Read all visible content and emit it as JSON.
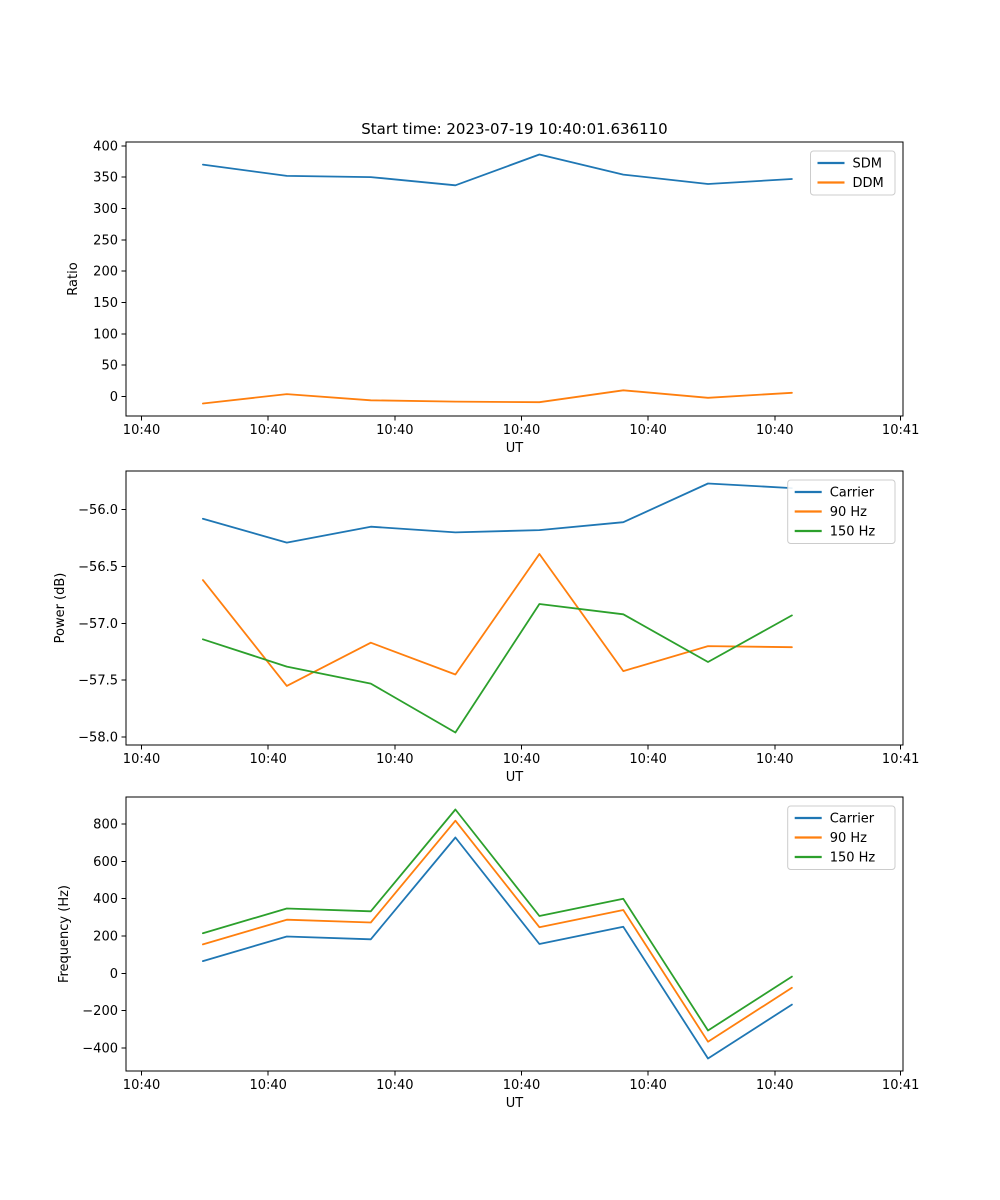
{
  "figure": {
    "background": "#ffffff",
    "title": "Start time: 2023-07-19 10:40:01.636110"
  },
  "chart_data": [
    {
      "id": "ratio",
      "type": "line",
      "title": "Start time: 2023-07-19 10:40:01.636110",
      "xlabel": "UT",
      "ylabel": "Ratio",
      "legend_location": "upper right",
      "grid": false,
      "ylim": [
        -31,
        406
      ],
      "yticks": [
        0,
        50,
        100,
        150,
        200,
        250,
        300,
        350,
        400
      ],
      "ytick_labels": [
        "0",
        "50",
        "100",
        "150",
        "200",
        "250",
        "300",
        "350",
        "400"
      ],
      "x_tick_labels": [
        "10:40",
        "10:40",
        "10:40",
        "10:40",
        "10:40",
        "10:40",
        "10:41"
      ],
      "x_tick_positions": [
        0.02,
        0.183,
        0.346,
        0.509,
        0.672,
        0.835,
        0.997
      ],
      "x_positions": [
        0.099,
        0.207,
        0.315,
        0.424,
        0.532,
        0.64,
        0.749,
        0.857
      ],
      "series": [
        {
          "name": "SDM",
          "color": "#1f77b4",
          "values": [
            370,
            352,
            350,
            337,
            386,
            354,
            339,
            347
          ]
        },
        {
          "name": "DDM",
          "color": "#ff7f0e",
          "values": [
            -11,
            4,
            -6,
            -8,
            -9,
            10,
            -2,
            6
          ]
        }
      ]
    },
    {
      "id": "power",
      "type": "line",
      "title": null,
      "xlabel": "UT",
      "ylabel": "Power (dB)",
      "legend_location": "upper right",
      "grid": false,
      "ylim": [
        -58.07,
        -55.66
      ],
      "yticks": [
        -58.0,
        -57.5,
        -57.0,
        -56.5,
        -56.0
      ],
      "ytick_labels": [
        "−58.0",
        "−57.5",
        "−57.0",
        "−56.5",
        "−56.0"
      ],
      "x_tick_labels": [
        "10:40",
        "10:40",
        "10:40",
        "10:40",
        "10:40",
        "10:40",
        "10:41"
      ],
      "x_tick_positions": [
        0.02,
        0.183,
        0.346,
        0.509,
        0.672,
        0.835,
        0.997
      ],
      "x_positions": [
        0.099,
        0.207,
        0.315,
        0.424,
        0.532,
        0.64,
        0.749,
        0.857
      ],
      "series": [
        {
          "name": "Carrier",
          "color": "#1f77b4",
          "values": [
            -56.08,
            -56.29,
            -56.15,
            -56.2,
            -56.18,
            -56.11,
            -55.77,
            -55.81
          ]
        },
        {
          "name": "90 Hz",
          "color": "#ff7f0e",
          "values": [
            -56.62,
            -57.55,
            -57.17,
            -57.45,
            -56.39,
            -57.42,
            -57.2,
            -57.21
          ]
        },
        {
          "name": "150 Hz",
          "color": "#2ca02c",
          "values": [
            -57.14,
            -57.38,
            -57.53,
            -57.96,
            -56.83,
            -56.92,
            -57.34,
            -56.93
          ]
        }
      ]
    },
    {
      "id": "frequency",
      "type": "line",
      "title": null,
      "xlabel": "UT",
      "ylabel": "Frequency (Hz)",
      "legend_location": "upper right",
      "grid": false,
      "ylim": [
        -524,
        945
      ],
      "yticks": [
        -400,
        -200,
        0,
        200,
        400,
        600,
        800
      ],
      "ytick_labels": [
        "−400",
        "−200",
        "0",
        "200",
        "400",
        "600",
        "800"
      ],
      "x_tick_labels": [
        "10:40",
        "10:40",
        "10:40",
        "10:40",
        "10:40",
        "10:40",
        "10:41"
      ],
      "x_tick_positions": [
        0.02,
        0.183,
        0.346,
        0.509,
        0.672,
        0.835,
        0.997
      ],
      "x_positions": [
        0.099,
        0.207,
        0.315,
        0.424,
        0.532,
        0.64,
        0.749,
        0.857
      ],
      "series": [
        {
          "name": "Carrier",
          "color": "#1f77b4",
          "values": [
            65,
            197,
            182,
            728,
            157,
            249,
            -457,
            -168
          ]
        },
        {
          "name": "90 Hz",
          "color": "#ff7f0e",
          "values": [
            155,
            287,
            272,
            818,
            247,
            339,
            -367,
            -78
          ]
        },
        {
          "name": "150 Hz",
          "color": "#2ca02c",
          "values": [
            215,
            347,
            332,
            878,
            307,
            399,
            -307,
            -18
          ]
        }
      ]
    }
  ],
  "colors": {
    "series_blue": "#1f77b4",
    "series_orange": "#ff7f0e",
    "series_green": "#2ca02c",
    "spine": "#000000",
    "legend_border": "#cccccc"
  }
}
